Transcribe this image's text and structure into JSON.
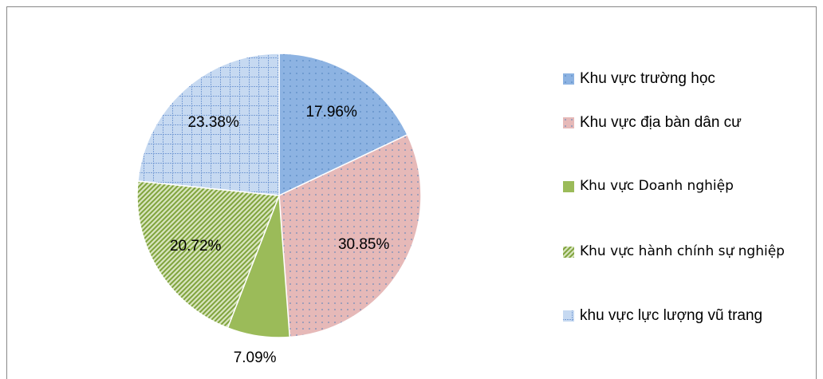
{
  "chart_data": {
    "type": "pie",
    "categories": [
      "Khu vực trường học",
      "Khu vực địa bàn dân cư",
      "Khu vực Doanh nghiệp",
      "Khu vực hành chính sự nghiệp",
      "khu vực lực lượng vũ trang"
    ],
    "values": [
      17.96,
      30.85,
      7.09,
      20.72,
      23.38
    ],
    "value_labels": [
      "17.96%",
      "30.85%",
      "7.09%",
      "20.72%",
      "23.38%"
    ],
    "colors": [
      "#8db3e2",
      "#e6b9b8",
      "#9bbb59",
      "#d7e4bd",
      "#c6d9f1"
    ],
    "legend": "right"
  }
}
